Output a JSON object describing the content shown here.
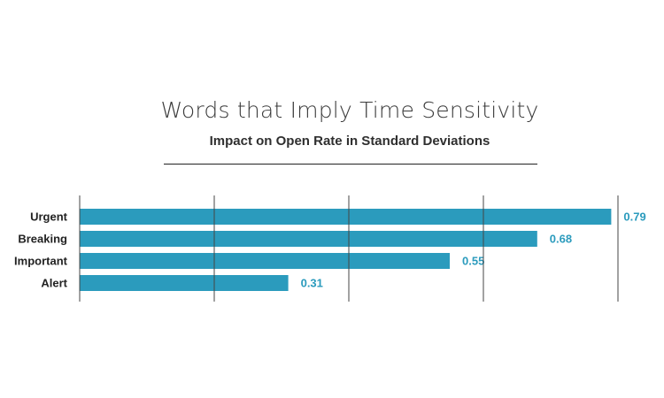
{
  "title": "Words that Imply Time Sensitivity",
  "subtitle": "Impact on Open Rate in Standard Deviations",
  "colors": {
    "bar": "#2b9bbd",
    "value_label": "#2b9bbd",
    "grid": "#444444",
    "text": "#222222"
  },
  "chart_data": {
    "type": "bar",
    "orientation": "horizontal",
    "title": "Words that Imply Time Sensitivity",
    "subtitle": "Impact on Open Rate in Standard Deviations",
    "categories": [
      "Urgent",
      "Breaking",
      "Important",
      "Alert"
    ],
    "values": [
      0.79,
      0.68,
      0.55,
      0.31
    ],
    "value_labels": [
      "0.79",
      "0.68",
      "0.55",
      "0.31"
    ],
    "xlim": [
      0,
      0.8
    ],
    "grid": true,
    "legend": "none"
  }
}
